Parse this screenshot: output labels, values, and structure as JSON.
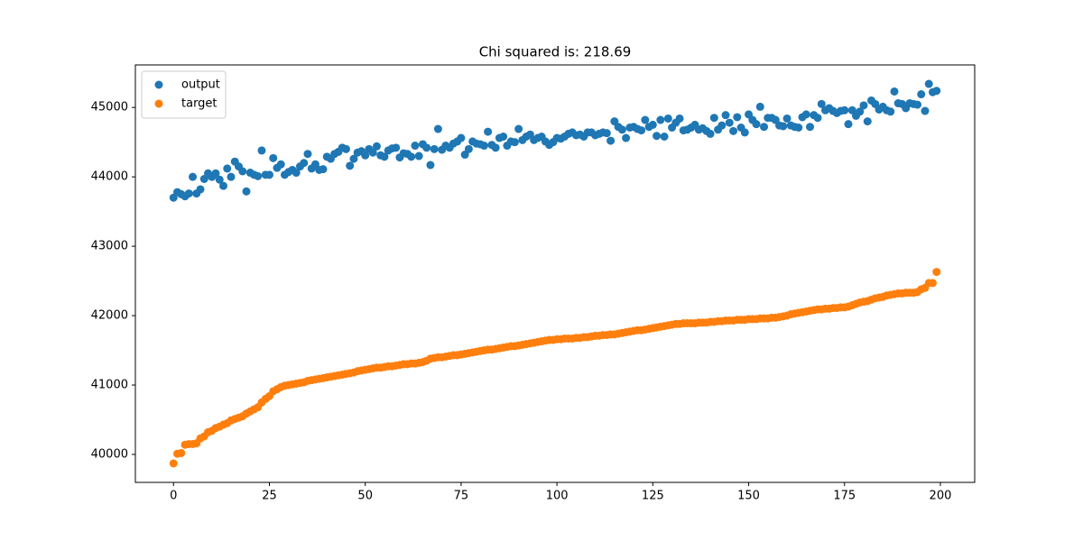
{
  "chart_data": {
    "type": "scatter",
    "title": "Chi squared is: 218.69",
    "x": [
      0,
      1,
      2,
      3,
      4,
      5,
      6,
      7,
      8,
      9,
      10,
      11,
      12,
      13,
      14,
      15,
      16,
      17,
      18,
      19,
      20,
      21,
      22,
      23,
      24,
      25,
      26,
      27,
      28,
      29,
      30,
      31,
      32,
      33,
      34,
      35,
      36,
      37,
      38,
      39,
      40,
      41,
      42,
      43,
      44,
      45,
      46,
      47,
      48,
      49,
      50,
      51,
      52,
      53,
      54,
      55,
      56,
      57,
      58,
      59,
      60,
      61,
      62,
      63,
      64,
      65,
      66,
      67,
      68,
      69,
      70,
      71,
      72,
      73,
      74,
      75,
      76,
      77,
      78,
      79,
      80,
      81,
      82,
      83,
      84,
      85,
      86,
      87,
      88,
      89,
      90,
      91,
      92,
      93,
      94,
      95,
      96,
      97,
      98,
      99,
      100,
      101,
      102,
      103,
      104,
      105,
      106,
      107,
      108,
      109,
      110,
      111,
      112,
      113,
      114,
      115,
      116,
      117,
      118,
      119,
      120,
      121,
      122,
      123,
      124,
      125,
      126,
      127,
      128,
      129,
      130,
      131,
      132,
      133,
      134,
      135,
      136,
      137,
      138,
      139,
      140,
      141,
      142,
      143,
      144,
      145,
      146,
      147,
      148,
      149,
      150,
      151,
      152,
      153,
      154,
      155,
      156,
      157,
      158,
      159,
      160,
      161,
      162,
      163,
      164,
      165,
      166,
      167,
      168,
      169,
      170,
      171,
      172,
      173,
      174,
      175,
      176,
      177,
      178,
      179,
      180,
      181,
      182,
      183,
      184,
      185,
      186,
      187,
      188,
      189,
      190,
      191,
      192,
      193,
      194,
      195,
      196,
      197,
      198,
      199
    ],
    "series": [
      {
        "name": "output",
        "color": "#1f77b4",
        "values": [
          43700,
          43780,
          43750,
          43720,
          43760,
          44000,
          43760,
          43820,
          43970,
          44050,
          44000,
          44050,
          43960,
          43870,
          44120,
          44000,
          44220,
          44150,
          44080,
          43790,
          44060,
          44030,
          44010,
          44380,
          44030,
          44030,
          44270,
          44130,
          44180,
          44030,
          44070,
          44100,
          44060,
          44150,
          44200,
          44330,
          44120,
          44180,
          44100,
          44110,
          44290,
          44260,
          44330,
          44360,
          44420,
          44400,
          44160,
          44260,
          44350,
          44370,
          44310,
          44400,
          44350,
          44440,
          44310,
          44290,
          44380,
          44410,
          44420,
          44280,
          44340,
          44330,
          44290,
          44450,
          44300,
          44470,
          44420,
          44170,
          44400,
          44690,
          44390,
          44450,
          44420,
          44480,
          44510,
          44560,
          44320,
          44400,
          44510,
          44480,
          44470,
          44450,
          44650,
          44460,
          44420,
          44560,
          44580,
          44450,
          44510,
          44500,
          44690,
          44530,
          44580,
          44610,
          44530,
          44560,
          44580,
          44510,
          44460,
          44500,
          44560,
          44550,
          44580,
          44620,
          44640,
          44600,
          44610,
          44580,
          44640,
          44640,
          44600,
          44620,
          44640,
          44630,
          44520,
          44800,
          44720,
          44680,
          44560,
          44710,
          44720,
          44690,
          44670,
          44820,
          44720,
          44750,
          44590,
          44820,
          44580,
          44840,
          44710,
          44780,
          44840,
          44670,
          44680,
          44710,
          44750,
          44680,
          44700,
          44660,
          44620,
          44850,
          44680,
          44740,
          44890,
          44780,
          44660,
          44860,
          44710,
          44640,
          44900,
          44820,
          44760,
          45010,
          44720,
          44850,
          44850,
          44820,
          44740,
          44730,
          44840,
          44740,
          44720,
          44710,
          44860,
          44900,
          44720,
          44890,
          44850,
          45050,
          44960,
          44990,
          44950,
          44920,
          44950,
          44960,
          44760,
          44960,
          44880,
          44940,
          45030,
          44800,
          45100,
          45050,
          44970,
          45010,
          44960,
          44940,
          45230,
          45060,
          45050,
          44990,
          45060,
          45050,
          45040,
          45190,
          44950,
          45340,
          45220,
          45240
        ]
      },
      {
        "name": "target",
        "color": "#ff7f0e",
        "values": [
          39870,
          40010,
          40020,
          40140,
          40150,
          40150,
          40160,
          40230,
          40260,
          40320,
          40340,
          40380,
          40400,
          40430,
          40450,
          40490,
          40510,
          40530,
          40550,
          40590,
          40620,
          40650,
          40680,
          40750,
          40800,
          40840,
          40910,
          40940,
          40970,
          40990,
          41000,
          41010,
          41020,
          41030,
          41040,
          41060,
          41070,
          41080,
          41090,
          41100,
          41110,
          41120,
          41130,
          41140,
          41150,
          41160,
          41170,
          41180,
          41200,
          41210,
          41220,
          41230,
          41240,
          41250,
          41250,
          41260,
          41270,
          41270,
          41280,
          41290,
          41300,
          41300,
          41310,
          41310,
          41320,
          41330,
          41350,
          41380,
          41390,
          41400,
          41400,
          41410,
          41420,
          41430,
          41430,
          41440,
          41450,
          41460,
          41470,
          41480,
          41490,
          41500,
          41510,
          41510,
          41520,
          41530,
          41540,
          41550,
          41560,
          41560,
          41570,
          41580,
          41590,
          41600,
          41610,
          41620,
          41630,
          41640,
          41650,
          41650,
          41660,
          41660,
          41670,
          41670,
          41670,
          41680,
          41680,
          41690,
          41690,
          41700,
          41710,
          41710,
          41720,
          41720,
          41730,
          41730,
          41740,
          41750,
          41760,
          41770,
          41780,
          41790,
          41790,
          41800,
          41810,
          41820,
          41830,
          41840,
          41850,
          41860,
          41870,
          41880,
          41880,
          41890,
          41890,
          41890,
          41890,
          41900,
          41900,
          41900,
          41910,
          41910,
          41920,
          41920,
          41930,
          41930,
          41930,
          41940,
          41940,
          41940,
          41950,
          41950,
          41950,
          41960,
          41960,
          41960,
          41970,
          41970,
          41980,
          41990,
          42000,
          42020,
          42030,
          42040,
          42050,
          42060,
          42070,
          42080,
          42090,
          42090,
          42100,
          42100,
          42110,
          42110,
          42120,
          42120,
          42130,
          42150,
          42170,
          42190,
          42200,
          42210,
          42230,
          42250,
          42260,
          42270,
          42290,
          42300,
          42310,
          42320,
          42320,
          42330,
          42330,
          42330,
          42340,
          42380,
          42400,
          42470,
          42470,
          42630
        ]
      }
    ],
    "xlim": [
      -9.95,
      208.95
    ],
    "xticks": [
      0,
      25,
      50,
      75,
      100,
      125,
      150,
      175,
      200
    ],
    "ylim": [
      39597,
      45613
    ],
    "yticks": [
      40000,
      41000,
      42000,
      43000,
      44000,
      45000
    ],
    "legend": "upper left"
  }
}
